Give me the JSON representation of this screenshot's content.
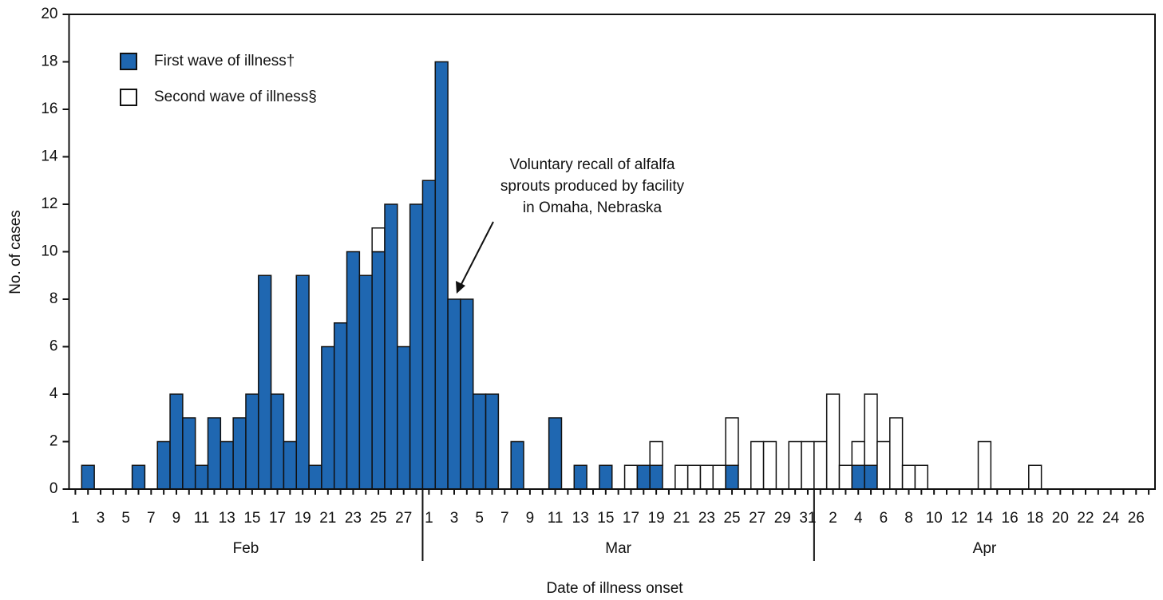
{
  "chart_data": {
    "type": "bar",
    "stacked": true,
    "y_label": "No. of cases",
    "x_label": "Date of illness onset",
    "categories": [
      "1",
      null,
      "3",
      null,
      "5",
      null,
      "7",
      null,
      "9",
      null,
      "11",
      null,
      "13",
      null,
      "15",
      null,
      "17",
      null,
      "19",
      null,
      "21",
      null,
      "23",
      null,
      "25",
      null,
      "27",
      null,
      "1",
      null,
      "3",
      null,
      "5",
      null,
      "7",
      null,
      "9",
      null,
      "11",
      null,
      "13",
      null,
      "15",
      null,
      "17",
      null,
      "19",
      null,
      "21",
      null,
      "23",
      null,
      "25",
      null,
      "27",
      null,
      "29",
      null,
      "31",
      null,
      "2",
      null,
      "4",
      null,
      "6",
      null,
      "8",
      null,
      "10",
      null,
      "12",
      null,
      "14",
      null,
      "16",
      null,
      "18",
      null,
      "20",
      null,
      "22",
      null,
      "24",
      null,
      "26",
      null
    ],
    "months": [
      "Feb",
      "Mar",
      "Apr"
    ],
    "series": [
      {
        "name": "First wave of illness†",
        "color": "#1f67b1",
        "values": [
          0,
          1,
          0,
          0,
          0,
          1,
          0,
          2,
          4,
          3,
          1,
          3,
          2,
          3,
          4,
          9,
          4,
          2,
          9,
          1,
          6,
          7,
          10,
          9,
          10,
          12,
          6,
          12,
          13,
          18,
          8,
          8,
          4,
          4,
          0,
          2,
          0,
          0,
          3,
          0,
          1,
          0,
          1,
          0,
          0,
          1,
          1,
          0,
          0,
          0,
          0,
          0,
          1,
          0,
          0,
          0,
          0,
          0,
          0,
          0,
          0,
          0,
          1,
          1,
          0,
          0,
          0,
          0,
          0,
          0,
          0,
          0,
          0,
          0,
          0,
          0,
          0,
          0,
          0,
          0,
          0,
          0,
          0,
          0,
          0,
          0
        ]
      },
      {
        "name": "Second wave of illness§",
        "color": "#ffffff",
        "values": [
          0,
          0,
          0,
          0,
          0,
          0,
          0,
          0,
          0,
          0,
          0,
          0,
          0,
          0,
          0,
          0,
          0,
          0,
          0,
          0,
          0,
          0,
          0,
          0,
          1,
          0,
          0,
          0,
          0,
          0,
          0,
          0,
          0,
          0,
          0,
          0,
          0,
          0,
          0,
          0,
          0,
          0,
          0,
          0,
          1,
          0,
          1,
          0,
          1,
          1,
          1,
          1,
          2,
          0,
          2,
          2,
          0,
          2,
          2,
          2,
          4,
          1,
          1,
          3,
          2,
          3,
          1,
          1,
          0,
          0,
          0,
          0,
          2,
          0,
          0,
          0,
          1,
          0,
          0,
          0,
          0,
          0,
          0,
          0,
          0,
          0
        ]
      }
    ],
    "annotation": [
      "Voluntary recall of alfalfa",
      "sprouts produced by facility",
      "in Omaha, Nebraska"
    ],
    "ylim": [
      0,
      20
    ],
    "yticks": [
      0,
      2,
      4,
      6,
      8,
      10,
      12,
      14,
      16,
      18,
      20
    ],
    "legend": "upper left"
  }
}
